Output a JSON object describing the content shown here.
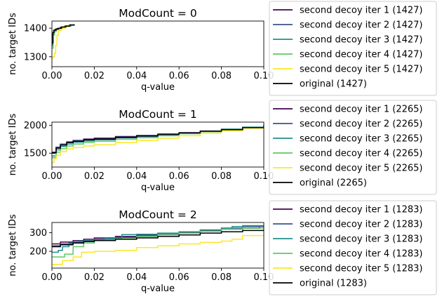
{
  "chart_data": [
    {
      "type": "line",
      "title": "ModCount = 0",
      "xlabel": "q-value",
      "ylabel": "no. target IDs",
      "xlim": [
        0.0,
        0.1
      ],
      "ylim": [
        1265,
        1425
      ],
      "xticks": [
        0.0,
        0.02,
        0.04,
        0.06,
        0.08,
        0.1
      ],
      "xtick_labels": [
        "0.00",
        "0.02",
        "0.04",
        "0.06",
        "0.08",
        "0.10"
      ],
      "yticks": [
        1300,
        1400
      ],
      "ytick_labels": [
        "1300",
        "1400"
      ],
      "legend_position": "right",
      "series": [
        {
          "name": "second decoy iter 1 (1427)",
          "color": "#440154",
          "x": [
            0.0,
            0.0004,
            0.0008,
            0.0015,
            0.0025,
            0.004,
            0.006,
            0.008,
            0.0095
          ],
          "y": [
            1340,
            1378,
            1392,
            1396,
            1399,
            1403,
            1407,
            1411,
            1413
          ]
        },
        {
          "name": "second decoy iter 2 (1427)",
          "color": "#3b528b",
          "x": [
            0.0,
            0.0005,
            0.001,
            0.002,
            0.003,
            0.005,
            0.007,
            0.009
          ],
          "y": [
            1350,
            1382,
            1392,
            1397,
            1400,
            1404,
            1408,
            1412
          ]
        },
        {
          "name": "second decoy iter 3 (1427)",
          "color": "#21918c",
          "x": [
            0.0,
            0.0004,
            0.0009,
            0.0018,
            0.003,
            0.0045,
            0.0065,
            0.0085,
            0.0105
          ],
          "y": [
            1345,
            1380,
            1389,
            1395,
            1399,
            1404,
            1408,
            1412,
            1414
          ]
        },
        {
          "name": "second decoy iter 4 (1427)",
          "color": "#5ec962",
          "x": [
            0.0,
            0.0006,
            0.0012,
            0.002,
            0.0035,
            0.005,
            0.007,
            0.009
          ],
          "y": [
            1330,
            1376,
            1388,
            1395,
            1399,
            1404,
            1409,
            1413
          ]
        },
        {
          "name": "second decoy iter 5 (1427)",
          "color": "#fde725",
          "x": [
            0.0,
            0.0006,
            0.0012,
            0.0018,
            0.0024,
            0.003,
            0.0045,
            0.006,
            0.008,
            0.01
          ],
          "y": [
            1295,
            1300,
            1312,
            1340,
            1375,
            1392,
            1400,
            1405,
            1410,
            1413
          ]
        },
        {
          "name": "original (1427)",
          "color": "#000000",
          "x": [
            0.0,
            0.0005,
            0.001,
            0.002,
            0.003,
            0.0045,
            0.0065,
            0.0085,
            0.0105
          ],
          "y": [
            1348,
            1385,
            1393,
            1397,
            1400,
            1404,
            1407,
            1411,
            1414
          ]
        }
      ]
    },
    {
      "type": "line",
      "title": "ModCount = 1",
      "xlabel": "q-value",
      "ylabel": "no. target IDs",
      "xlim": [
        0.0,
        0.1
      ],
      "ylim": [
        1250,
        2060
      ],
      "xticks": [
        0.0,
        0.02,
        0.04,
        0.06,
        0.08,
        0.1
      ],
      "xtick_labels": [
        "0.00",
        "0.02",
        "0.04",
        "0.06",
        "0.08",
        "0.10"
      ],
      "yticks": [
        1500,
        2000
      ],
      "ytick_labels": [
        "1500",
        "2000"
      ],
      "legend_position": "right",
      "series": [
        {
          "name": "second decoy iter 1 (2265)",
          "color": "#440154",
          "x": [
            0.0,
            0.002,
            0.004,
            0.007,
            0.01,
            0.015,
            0.02,
            0.03,
            0.04,
            0.05,
            0.06,
            0.07,
            0.08,
            0.09,
            0.1
          ],
          "y": [
            1500,
            1600,
            1660,
            1700,
            1730,
            1755,
            1770,
            1800,
            1820,
            1845,
            1870,
            1900,
            1925,
            1955,
            2000
          ]
        },
        {
          "name": "second decoy iter 2 (2265)",
          "color": "#3b528b",
          "x": [
            0.0,
            0.002,
            0.004,
            0.007,
            0.01,
            0.015,
            0.02,
            0.03,
            0.04,
            0.05,
            0.06,
            0.07,
            0.08,
            0.09,
            0.1
          ],
          "y": [
            1520,
            1610,
            1665,
            1705,
            1725,
            1745,
            1760,
            1790,
            1815,
            1840,
            1865,
            1895,
            1920,
            1950,
            1990
          ]
        },
        {
          "name": "second decoy iter 3 (2265)",
          "color": "#21918c",
          "x": [
            0.0,
            0.002,
            0.004,
            0.007,
            0.01,
            0.015,
            0.02,
            0.03,
            0.04,
            0.05,
            0.06,
            0.07,
            0.08,
            0.09,
            0.1
          ],
          "y": [
            1450,
            1560,
            1620,
            1665,
            1695,
            1720,
            1740,
            1775,
            1800,
            1830,
            1860,
            1895,
            1935,
            1970,
            2005
          ]
        },
        {
          "name": "second decoy iter 4 (2265)",
          "color": "#5ec962",
          "x": [
            0.0,
            0.002,
            0.004,
            0.007,
            0.01,
            0.015,
            0.02,
            0.03,
            0.04,
            0.05,
            0.06,
            0.07,
            0.08,
            0.09,
            0.1
          ],
          "y": [
            1420,
            1520,
            1580,
            1630,
            1665,
            1695,
            1715,
            1750,
            1780,
            1815,
            1850,
            1885,
            1920,
            1960,
            2000
          ]
        },
        {
          "name": "second decoy iter 5 (2265)",
          "color": "#fde725",
          "x": [
            0.0,
            0.001,
            0.002,
            0.004,
            0.007,
            0.01,
            0.015,
            0.02,
            0.03,
            0.04,
            0.05,
            0.06,
            0.07,
            0.08,
            0.09,
            0.1
          ],
          "y": [
            1330,
            1400,
            1460,
            1530,
            1575,
            1600,
            1630,
            1650,
            1690,
            1730,
            1770,
            1815,
            1860,
            1905,
            1950,
            1995
          ]
        },
        {
          "name": "original (2265)",
          "color": "#000000",
          "x": [
            0.0,
            0.002,
            0.004,
            0.007,
            0.01,
            0.015,
            0.02,
            0.03,
            0.04,
            0.05,
            0.06,
            0.07,
            0.08,
            0.09,
            0.1
          ],
          "y": [
            1510,
            1590,
            1645,
            1690,
            1715,
            1740,
            1755,
            1785,
            1810,
            1840,
            1865,
            1895,
            1925,
            1960,
            2005
          ]
        }
      ]
    },
    {
      "type": "line",
      "title": "ModCount = 2",
      "xlabel": "q-value",
      "ylabel": "no. target IDs",
      "xlim": [
        0.0,
        0.1
      ],
      "ylim": [
        110,
        355
      ],
      "xticks": [
        0.0,
        0.02,
        0.04,
        0.06,
        0.08,
        0.1
      ],
      "xtick_labels": [
        "0.00",
        "0.02",
        "0.04",
        "0.06",
        "0.08",
        "0.10"
      ],
      "yticks": [
        200,
        300
      ],
      "ytick_labels": [
        "200",
        "300"
      ],
      "legend_position": "right",
      "series": [
        {
          "name": "second decoy iter 1 (1283)",
          "color": "#440154",
          "x": [
            0.0,
            0.004,
            0.01,
            0.015,
            0.02,
            0.03,
            0.04,
            0.05,
            0.06,
            0.07,
            0.08,
            0.09,
            0.098
          ],
          "y": [
            240,
            250,
            258,
            265,
            272,
            280,
            288,
            295,
            302,
            310,
            318,
            325,
            330
          ]
        },
        {
          "name": "second decoy iter 2 (1283)",
          "color": "#3b528b",
          "x": [
            0.0,
            0.004,
            0.01,
            0.015,
            0.02,
            0.03,
            0.04,
            0.05,
            0.06,
            0.07,
            0.08,
            0.09,
            0.1
          ],
          "y": [
            230,
            240,
            250,
            258,
            265,
            275,
            285,
            295,
            305,
            315,
            325,
            333,
            340
          ]
        },
        {
          "name": "second decoy iter 3 (1283)",
          "color": "#21918c",
          "x": [
            0.0,
            0.003,
            0.005,
            0.008,
            0.012,
            0.02,
            0.025,
            0.033,
            0.04,
            0.05,
            0.06,
            0.07,
            0.08,
            0.085,
            0.09,
            0.1
          ],
          "y": [
            195,
            205,
            225,
            245,
            255,
            262,
            270,
            290,
            292,
            298,
            305,
            315,
            325,
            333,
            338,
            340
          ]
        },
        {
          "name": "second decoy iter 4 (1283)",
          "color": "#5ec962",
          "x": [
            0.0,
            0.006,
            0.01,
            0.015,
            0.02,
            0.03,
            0.04,
            0.05,
            0.06,
            0.07,
            0.08,
            0.09,
            0.1
          ],
          "y": [
            170,
            185,
            225,
            245,
            258,
            268,
            278,
            288,
            298,
            308,
            318,
            325,
            330
          ]
        },
        {
          "name": "second decoy iter 5 (1283)",
          "color": "#fde725",
          "x": [
            0.0,
            0.005,
            0.01,
            0.014,
            0.02,
            0.03,
            0.04,
            0.05,
            0.06,
            0.07,
            0.08,
            0.085,
            0.09,
            0.1
          ],
          "y": [
            130,
            150,
            170,
            195,
            200,
            205,
            220,
            230,
            240,
            248,
            255,
            265,
            285,
            290
          ]
        },
        {
          "name": "original (1283)",
          "color": "#000000",
          "x": [
            0.0,
            0.004,
            0.01,
            0.015,
            0.02,
            0.03,
            0.04,
            0.05,
            0.06,
            0.07,
            0.08,
            0.09,
            0.1
          ],
          "y": [
            225,
            235,
            245,
            252,
            258,
            265,
            272,
            280,
            288,
            298,
            305,
            312,
            318
          ]
        }
      ]
    }
  ]
}
